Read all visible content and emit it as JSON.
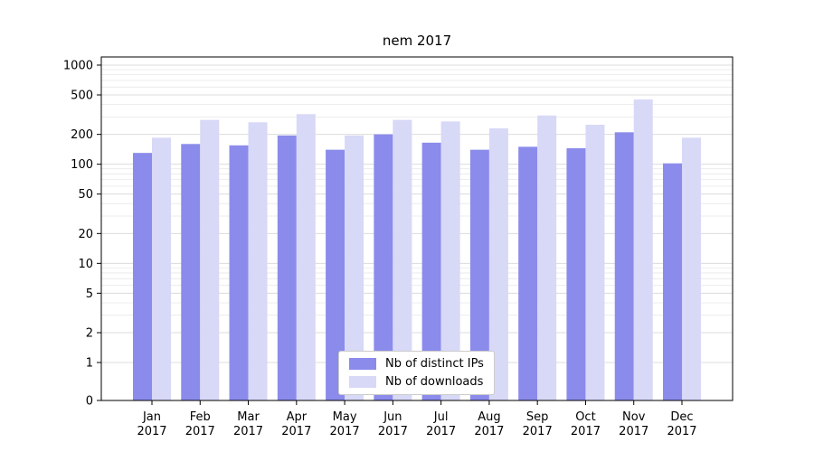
{
  "chart_data": {
    "type": "bar",
    "title": "nem 2017",
    "categories": [
      "Jan 2017",
      "Feb 2017",
      "Mar 2017",
      "Apr 2017",
      "May 2017",
      "Jun 2017",
      "Jul 2017",
      "Aug 2017",
      "Sep 2017",
      "Oct 2017",
      "Nov 2017",
      "Dec 2017"
    ],
    "series": [
      {
        "name": "Nb of distinct IPs",
        "color": "#8b8bec",
        "values": [
          130,
          160,
          155,
          195,
          140,
          200,
          165,
          140,
          150,
          145,
          210,
          102
        ]
      },
      {
        "name": "Nb of downloads",
        "color": "#d8d8f7",
        "values": [
          185,
          280,
          265,
          320,
          195,
          280,
          270,
          230,
          310,
          250,
          450,
          185
        ]
      }
    ],
    "yscale": "symlog",
    "yticks": [
      0,
      1,
      2,
      5,
      10,
      20,
      50,
      100,
      200,
      500,
      1000
    ],
    "ylim": [
      0,
      1000
    ],
    "xlabel": "",
    "ylabel": "",
    "grid": true,
    "legend_position": "lower center",
    "colors": {
      "axis": "#000000",
      "major_grid": "#dcdcdc",
      "minor_grid": "#e9e9e9",
      "background": "#ffffff"
    }
  }
}
